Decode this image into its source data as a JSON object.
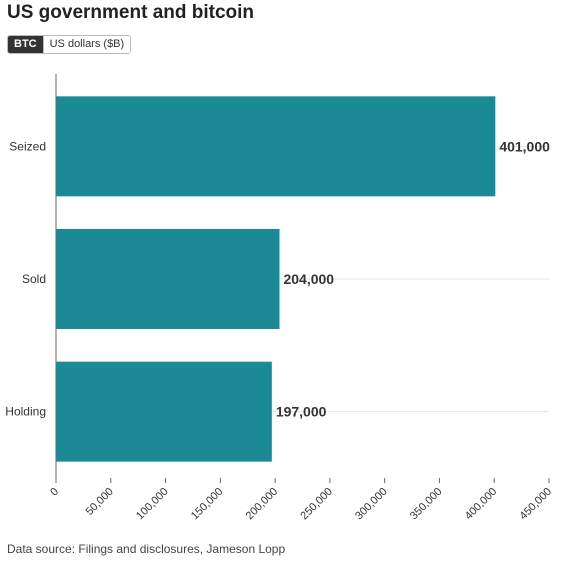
{
  "title": "US government and bitcoin",
  "toggle": {
    "active_label": "BTC",
    "inactive_label": "US dollars ($B)"
  },
  "source": "Data source: Filings and disclosures, Jameson Lopp",
  "colors": {
    "bar": "#1b8a96",
    "grid": "#e6e6e6",
    "axis": "#666666",
    "text": "#333333"
  },
  "chart_data": {
    "type": "bar",
    "orientation": "horizontal",
    "categories": [
      "Seized",
      "Sold",
      "Holding"
    ],
    "values": [
      401000,
      204000,
      197000
    ],
    "value_labels": [
      "401,000",
      "204,000",
      "197,000"
    ],
    "xlim": [
      0,
      450000
    ],
    "xticks": [
      0,
      50000,
      100000,
      150000,
      200000,
      250000,
      300000,
      350000,
      400000,
      450000
    ],
    "xtick_labels": [
      "0",
      "50,000",
      "100,000",
      "150,000",
      "200,000",
      "250,000",
      "300,000",
      "350,000",
      "400,000",
      "450,000"
    ],
    "grid": true
  }
}
